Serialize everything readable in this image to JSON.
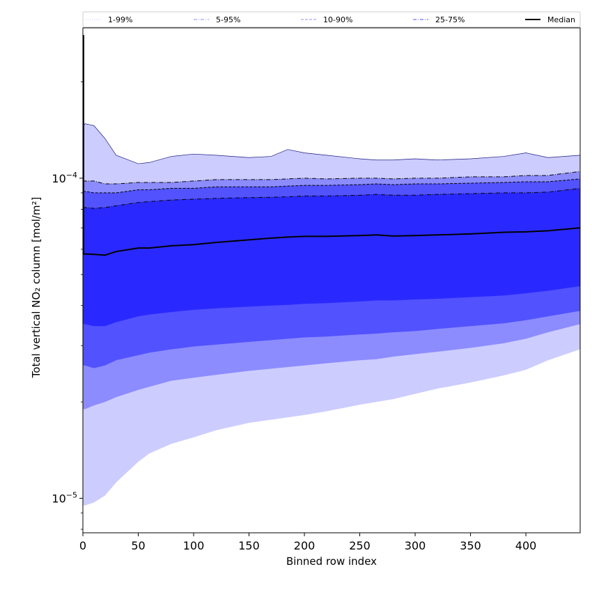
{
  "chart_data": {
    "type": "area",
    "xlabel": "Binned row index",
    "ylabel": "Total vertical NO₂ column [mol/m²]",
    "y_scale": "log",
    "xlim": [
      0,
      449
    ],
    "ylim": [
      7.8e-06,
      0.000295
    ],
    "x_ticks": [
      0,
      50,
      100,
      150,
      200,
      250,
      300,
      350,
      400
    ],
    "x_tick_labels": [
      "0",
      "50",
      "100",
      "150",
      "200",
      "250",
      "300",
      "350",
      "400"
    ],
    "y_ticks": [
      1e-05,
      0.0001
    ],
    "y_tick_labels": [
      {
        "base": "10",
        "exp": "−5"
      },
      {
        "base": "10",
        "exp": "−4"
      }
    ],
    "legend_position": "top",
    "grid": false,
    "x": [
      0,
      2,
      10,
      20,
      30,
      50,
      60,
      80,
      100,
      120,
      150,
      170,
      185,
      200,
      220,
      250,
      265,
      280,
      300,
      320,
      350,
      380,
      400,
      420,
      449
    ],
    "bands": [
      {
        "name": "1-99%",
        "color": "#ccccff",
        "lower": [
          9.5e-06,
          9.5e-06,
          9.7e-06,
          1.02e-05,
          1.12e-05,
          1.3e-05,
          1.38e-05,
          1.48e-05,
          1.55e-05,
          1.63e-05,
          1.72e-05,
          1.76e-05,
          1.79e-05,
          1.82e-05,
          1.87e-05,
          1.96e-05,
          2e-05,
          2.04e-05,
          2.12e-05,
          2.2e-05,
          2.3e-05,
          2.42e-05,
          2.52e-05,
          2.7e-05,
          2.92e-05
        ],
        "upper": [
          0.000145,
          0.000148,
          0.000146,
          0.000133,
          0.000118,
          0.000111,
          0.000112,
          0.000117,
          0.000119,
          0.000118,
          0.000116,
          0.000117,
          0.000123,
          0.00012,
          0.000118,
          0.000115,
          0.000114,
          0.000114,
          0.000115,
          0.000114,
          0.000115,
          0.000117,
          0.00012,
          0.000116,
          0.000118
        ]
      },
      {
        "name": "5-95%",
        "color": "#8c8cff",
        "lower": [
          1.9e-05,
          1.9e-05,
          1.95e-05,
          2e-05,
          2.07e-05,
          2.18e-05,
          2.23e-05,
          2.33e-05,
          2.38e-05,
          2.43e-05,
          2.5e-05,
          2.54e-05,
          2.57e-05,
          2.6e-05,
          2.64e-05,
          2.7e-05,
          2.72e-05,
          2.77e-05,
          2.82e-05,
          2.87e-05,
          2.95e-05,
          3.05e-05,
          3.15e-05,
          3.3e-05,
          3.5e-05
        ],
        "upper": [
          9.8e-05,
          9.8e-05,
          9.8e-05,
          9.6e-05,
          9.6e-05,
          9.7e-05,
          9.7e-05,
          9.7e-05,
          9.8e-05,
          9.9e-05,
          9.9e-05,
          9.9e-05,
          9.95e-05,
          0.0001,
          9.95e-05,
          0.0001,
          0.0001,
          9.95e-05,
          0.0001,
          0.0001,
          0.000101,
          0.000101,
          0.000102,
          0.000102,
          0.000105
        ]
      },
      {
        "name": "10-90%",
        "color": "#5252ff",
        "lower": [
          2.6e-05,
          2.6e-05,
          2.55e-05,
          2.6e-05,
          2.7e-05,
          2.8e-05,
          2.85e-05,
          2.92e-05,
          2.98e-05,
          3.02e-05,
          3.08e-05,
          3.12e-05,
          3.15e-05,
          3.18e-05,
          3.2e-05,
          3.25e-05,
          3.27e-05,
          3.3e-05,
          3.33e-05,
          3.38e-05,
          3.45e-05,
          3.52e-05,
          3.6e-05,
          3.7e-05,
          3.85e-05
        ],
        "upper": [
          9.1e-05,
          9.1e-05,
          9e-05,
          9e-05,
          9e-05,
          9.2e-05,
          9.2e-05,
          9.3e-05,
          9.3e-05,
          9.4e-05,
          9.4e-05,
          9.4e-05,
          9.45e-05,
          9.5e-05,
          9.5e-05,
          9.55e-05,
          9.6e-05,
          9.55e-05,
          9.6e-05,
          9.6e-05,
          9.65e-05,
          9.7e-05,
          9.75e-05,
          9.75e-05,
          9.95e-05
        ]
      },
      {
        "name": "25-75%",
        "color": "#2929ff",
        "lower": [
          3.5e-05,
          3.5e-05,
          3.45e-05,
          3.45e-05,
          3.55e-05,
          3.7e-05,
          3.75e-05,
          3.82e-05,
          3.88e-05,
          3.92e-05,
          3.97e-05,
          4e-05,
          4.02e-05,
          4.05e-05,
          4.07e-05,
          4.12e-05,
          4.15e-05,
          4.15e-05,
          4.18e-05,
          4.2e-05,
          4.25e-05,
          4.3e-05,
          4.37e-05,
          4.45e-05,
          4.6e-05
        ],
        "upper": [
          8.1e-05,
          8.1e-05,
          8.05e-05,
          8.1e-05,
          8.2e-05,
          8.4e-05,
          8.45e-05,
          8.55e-05,
          8.6e-05,
          8.65e-05,
          8.7e-05,
          8.72e-05,
          8.75e-05,
          8.8e-05,
          8.8e-05,
          8.85e-05,
          8.9e-05,
          8.85e-05,
          8.85e-05,
          8.9e-05,
          8.95e-05,
          9e-05,
          9e-05,
          9.05e-05,
          9.3e-05
        ]
      }
    ],
    "series": [
      {
        "name": "Median",
        "color": "#000000",
        "values": [
          5.8e-05,
          5.8e-05,
          5.78e-05,
          5.75e-05,
          5.9e-05,
          6.05e-05,
          6.05e-05,
          6.15e-05,
          6.2e-05,
          6.3e-05,
          6.42e-05,
          6.5e-05,
          6.55e-05,
          6.58e-05,
          6.58e-05,
          6.62e-05,
          6.65e-05,
          6.6e-05,
          6.62e-05,
          6.65e-05,
          6.7e-05,
          6.78e-05,
          6.8e-05,
          6.85e-05,
          7e-05
        ]
      }
    ],
    "median_spike": {
      "x": 0,
      "value": 0.00028
    },
    "legend": [
      {
        "label": "1-99%",
        "style": "dotted",
        "color": "#ccccff"
      },
      {
        "label": "5-95%",
        "style": "dashdot",
        "color": "#8c8cff"
      },
      {
        "label": "10-90%",
        "style": "dashed",
        "color": "#8c8cff"
      },
      {
        "label": "25-75%",
        "style": "dashdot",
        "color": "#5252ff"
      },
      {
        "label": "Median",
        "style": "solid",
        "color": "#000000"
      }
    ]
  }
}
